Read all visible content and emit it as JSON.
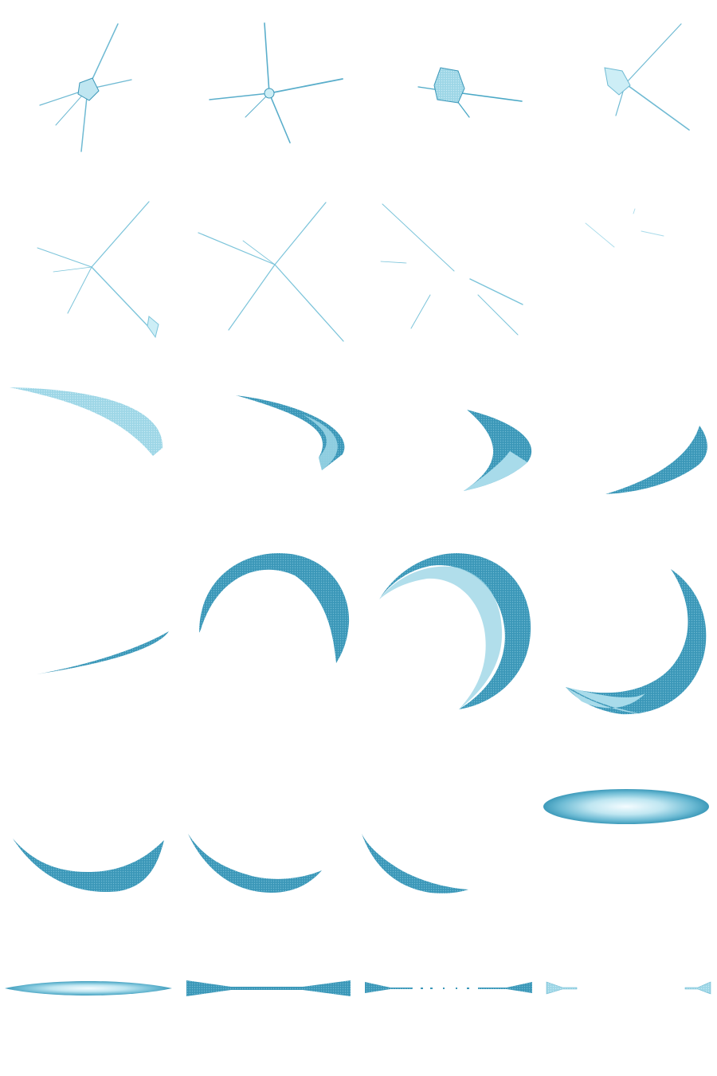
{
  "sheet": {
    "name": "ice-slash-effect-sprite-sheet",
    "colors": {
      "dark": "#2f8fb0",
      "mid": "#4aa8c6",
      "light": "#8ccfe2",
      "pale": "#cdeef6",
      "white": "#f4fcff"
    },
    "rows": [
      {
        "kind": "sparkle",
        "frames": 4
      },
      {
        "kind": "sparkle-scatter",
        "frames": 4
      },
      {
        "kind": "slash-arc-forming",
        "frames": 4
      },
      {
        "kind": "slash-arc-crescent",
        "frames": 4
      },
      {
        "kind": "slash-arc-fading",
        "frames": 4
      },
      {
        "kind": "horizontal-flash",
        "frames": 4
      }
    ]
  }
}
